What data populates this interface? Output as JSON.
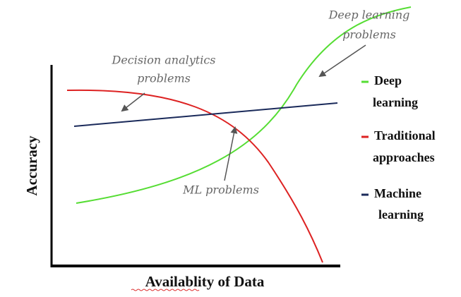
{
  "axes": {
    "x_label": "Availablity of Data",
    "y_label": "Accuracy"
  },
  "annotations": [
    {
      "lines": [
        "Decision analytics",
        "problems"
      ]
    },
    {
      "lines": [
        "Deep learning",
        "problems"
      ]
    },
    {
      "lines": [
        "ML problems"
      ]
    }
  ],
  "legend": [
    {
      "lines": [
        "Deep",
        "learning"
      ]
    },
    {
      "lines": [
        "Traditional",
        "approaches"
      ]
    },
    {
      "lines": [
        "Machine",
        "learning"
      ]
    }
  ]
}
